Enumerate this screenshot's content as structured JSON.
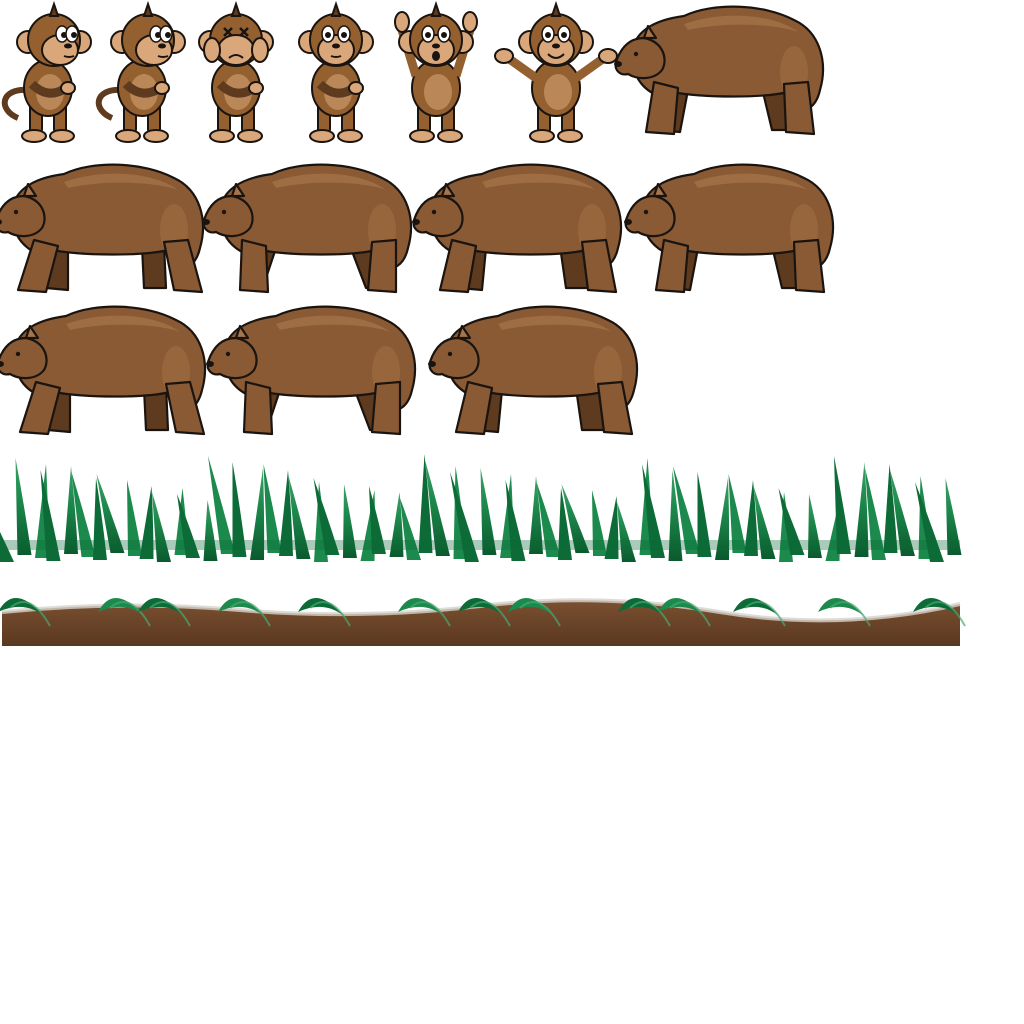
{
  "sheet": {
    "background": "#ffffff",
    "colors": {
      "outline": "#1a1410",
      "fur": "#8a5a34",
      "fur_dark": "#5e3a1e",
      "fur_light": "#a8754a",
      "monkey_face": "#d9a77a",
      "monkey_fur": "#94602f",
      "grass_dark": "#0c6b37",
      "grass_mid": "#1d8a4d",
      "grass_light": "#48a872",
      "soil": "#6a4428",
      "soil_dark": "#4d2f1a"
    }
  },
  "sprites": {
    "monkeys": [
      {
        "pose": "walk-right-1",
        "face": "side"
      },
      {
        "pose": "walk-right-2",
        "face": "side"
      },
      {
        "pose": "dizzy",
        "face": "x-eyes"
      },
      {
        "pose": "arms-crossed",
        "face": "front"
      },
      {
        "pose": "hands-up",
        "face": "surprised"
      },
      {
        "pose": "arms-out",
        "face": "happy"
      }
    ],
    "bears": [
      {
        "frame": 1,
        "gait": "stand"
      },
      {
        "frame": 2,
        "gait": "walk-a"
      },
      {
        "frame": 3,
        "gait": "walk-b"
      },
      {
        "frame": 4,
        "gait": "walk-c"
      },
      {
        "frame": 5,
        "gait": "walk-d"
      },
      {
        "frame": 6,
        "gait": "walk-e"
      },
      {
        "frame": 7,
        "gait": "walk-f"
      },
      {
        "frame": 8,
        "gait": "walk-g"
      }
    ],
    "tiles": [
      {
        "name": "grass-strip"
      },
      {
        "name": "ground-strip"
      }
    ]
  }
}
